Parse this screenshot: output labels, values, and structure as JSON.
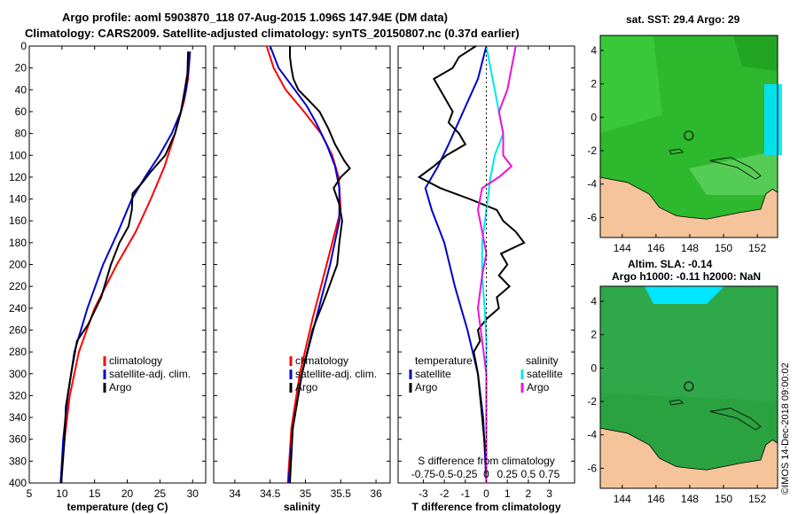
{
  "header": {
    "line1": "Argo profile: aoml 5903870_118 07-Aug-2015 1.096S 147.94E (DM data)",
    "line2": "Climatology: CARS2009. Satellite-adjusted climatology: synTS_20150807.nc (0.37d earlier)"
  },
  "maps": {
    "sst_title": "sat. SST: 29.4 Argo: 29",
    "sla_title1": "Altim. SLA: -0.14",
    "sla_title2": "Argo h1000: -0.11 h2000: NaN",
    "credit": "©IMOS 14-Dec-2018 09:00:02",
    "lon_ticks": [
      144,
      146,
      148,
      150,
      152
    ],
    "lat_ticks": [
      4,
      2,
      0,
      -2,
      -4,
      -6
    ],
    "lon_range": [
      142.7,
      153.2
    ],
    "lat_range": [
      -7.2,
      4.9
    ],
    "float_position": {
      "lon": 147.94,
      "lat": -1.096
    },
    "colors": {
      "land": "#f5c49a",
      "sst_ocean": "#2db82d",
      "sla_ocean": "#2fa84a",
      "cyan": "#00e6ff"
    }
  },
  "colors": {
    "climatology": "#ff0000",
    "satellite": "#0000cc",
    "argo": "#000000",
    "sat_salinity": "#00e5ee",
    "argo_salinity": "#ee11dd"
  },
  "chart_data": [
    {
      "type": "line",
      "xlabel": "temperature (deg C)",
      "ylabel": "",
      "xlim": [
        5,
        32
      ],
      "ylim": [
        400,
        0
      ],
      "xticks": [
        5,
        10,
        15,
        20,
        25,
        30
      ],
      "yticks": [
        0,
        20,
        40,
        60,
        80,
        100,
        120,
        140,
        160,
        180,
        200,
        220,
        240,
        260,
        280,
        300,
        320,
        340,
        360,
        380,
        400
      ],
      "legend": [
        "climatology",
        "satellite-adj. clim.",
        "Argo"
      ],
      "series": [
        {
          "name": "climatology",
          "depth": [
            5,
            30,
            50,
            80,
            110,
            140,
            170,
            200,
            240,
            280,
            320,
            360,
            400
          ],
          "values": [
            29.6,
            29.3,
            28.7,
            27.3,
            25.7,
            23.6,
            21.3,
            18.4,
            15.0,
            12.6,
            11.2,
            10.4,
            9.8
          ]
        },
        {
          "name": "satellite-adj. clim.",
          "depth": [
            5,
            20,
            40,
            60,
            80,
            100,
            120,
            140,
            170,
            200,
            240,
            280,
            320,
            360,
            400
          ],
          "values": [
            29.6,
            29.4,
            29.0,
            28.2,
            26.8,
            24.9,
            22.7,
            20.7,
            18.6,
            16.3,
            13.9,
            11.9,
            10.9,
            10.2,
            9.8
          ]
        },
        {
          "name": "Argo",
          "depth": [
            5,
            25,
            40,
            60,
            80,
            100,
            115,
            125,
            135,
            150,
            165,
            180,
            200,
            230,
            255,
            270,
            300,
            330,
            360,
            400
          ],
          "values": [
            29.3,
            29.2,
            28.8,
            28.2,
            27.3,
            25.8,
            23.6,
            22.3,
            20.8,
            20.7,
            20.2,
            18.8,
            17.5,
            16.0,
            14.0,
            12.3,
            11.4,
            10.6,
            10.4,
            9.9
          ]
        }
      ]
    },
    {
      "type": "line",
      "xlabel": "salinity",
      "ylabel": "",
      "xlim": [
        33.7,
        36.2
      ],
      "ylim": [
        400,
        0
      ],
      "xticks": [
        34,
        34.5,
        35,
        35.5,
        36
      ],
      "legend": [
        "climatology",
        "satellite-adj. clim.",
        "Argo"
      ],
      "series": [
        {
          "name": "climatology",
          "depth": [
            0,
            20,
            40,
            60,
            80,
            100,
            120,
            150,
            170,
            200,
            250,
            300,
            350,
            400
          ],
          "values": [
            34.45,
            34.55,
            34.72,
            34.98,
            35.22,
            35.38,
            35.47,
            35.5,
            35.42,
            35.3,
            35.1,
            34.92,
            34.8,
            34.75
          ]
        },
        {
          "name": "satellite-adj. clim.",
          "depth": [
            0,
            20,
            40,
            55,
            70,
            90,
            110,
            130,
            160,
            200,
            250,
            300,
            350,
            400
          ],
          "values": [
            34.5,
            34.62,
            34.85,
            35.02,
            35.15,
            35.3,
            35.42,
            35.48,
            35.48,
            35.35,
            35.15,
            34.95,
            34.82,
            34.76
          ]
        },
        {
          "name": "Argo",
          "depth": [
            0,
            10,
            20,
            30,
            40,
            50,
            60,
            75,
            90,
            105,
            112,
            120,
            130,
            145,
            160,
            180,
            200,
            230,
            260,
            300,
            350,
            400
          ],
          "values": [
            34.78,
            34.78,
            34.8,
            34.83,
            34.9,
            35.05,
            35.2,
            35.32,
            35.42,
            35.55,
            35.63,
            35.5,
            35.4,
            35.48,
            35.52,
            35.48,
            35.45,
            35.28,
            35.1,
            34.95,
            34.82,
            34.78
          ]
        }
      ]
    },
    {
      "type": "line",
      "xlabel": "T difference from climatology",
      "top_xlabel": "S difference from climatology",
      "xlim": [
        -4.2,
        4.2
      ],
      "ylim": [
        400,
        0
      ],
      "xticks": [
        -3,
        -2,
        -1,
        0,
        1,
        2,
        3
      ],
      "top_ticks": [
        "-0.75",
        "-0.5",
        "-0.25",
        "0",
        "0.25",
        "0.5",
        "0.75"
      ],
      "s_xlim": [
        -1.05,
        1.05
      ],
      "legend_left_title": "temperature",
      "legend_right_title": "salinity",
      "legend": [
        "satellite",
        "Argo",
        "satellite",
        "Argo"
      ],
      "series": [
        {
          "name": "T satellite",
          "depth": [
            0,
            30,
            60,
            90,
            110,
            130,
            150,
            180,
            220,
            260,
            300,
            340,
            400
          ],
          "values": [
            0,
            -0.4,
            -1.1,
            -1.8,
            -2.3,
            -2.9,
            -2.6,
            -2.0,
            -1.5,
            -0.9,
            -0.4,
            -0.15,
            0
          ]
        },
        {
          "name": "T Argo",
          "depth": [
            0,
            10,
            20,
            30,
            40,
            50,
            60,
            70,
            80,
            90,
            100,
            110,
            120,
            130,
            140,
            150,
            160,
            170,
            180,
            190,
            200,
            210,
            220,
            230,
            240,
            250,
            260,
            270,
            280,
            290,
            300,
            320,
            340,
            360,
            380,
            400
          ],
          "values": [
            -0.5,
            -1.3,
            -1.6,
            -2.5,
            -2.2,
            -1.9,
            -1.6,
            -1.8,
            -1.3,
            -1.0,
            -1.9,
            -2.5,
            -3.2,
            -2.2,
            -0.8,
            0.5,
            0.8,
            1.4,
            1.8,
            0.7,
            1.0,
            0.6,
            1.1,
            0.5,
            0.6,
            0.0,
            -0.4,
            -0.3,
            -0.6,
            -0.5,
            -0.4,
            -0.3,
            -0.2,
            -0.1,
            0.0,
            0.0
          ]
        },
        {
          "name": "S satellite",
          "depth": [
            0,
            20,
            40,
            60,
            80,
            100,
            120,
            150,
            180,
            210,
            240,
            270,
            300,
            350,
            400
          ],
          "values": [
            0.0,
            0.05,
            0.1,
            0.15,
            0.2,
            0.1,
            0.05,
            0.0,
            -0.05,
            -0.05,
            -0.02,
            0.0,
            0.0,
            0.0,
            0.0
          ]
        },
        {
          "name": "S Argo",
          "depth": [
            0,
            20,
            40,
            60,
            80,
            100,
            110,
            120,
            130,
            150,
            170,
            190,
            210,
            240,
            270,
            300,
            350,
            400
          ],
          "values": [
            0.35,
            0.3,
            0.25,
            0.15,
            0.2,
            0.2,
            0.3,
            0.15,
            -0.05,
            -0.1,
            -0.05,
            0.0,
            -0.05,
            -0.1,
            -0.05,
            0.0,
            0.0,
            0.0
          ]
        }
      ]
    }
  ]
}
